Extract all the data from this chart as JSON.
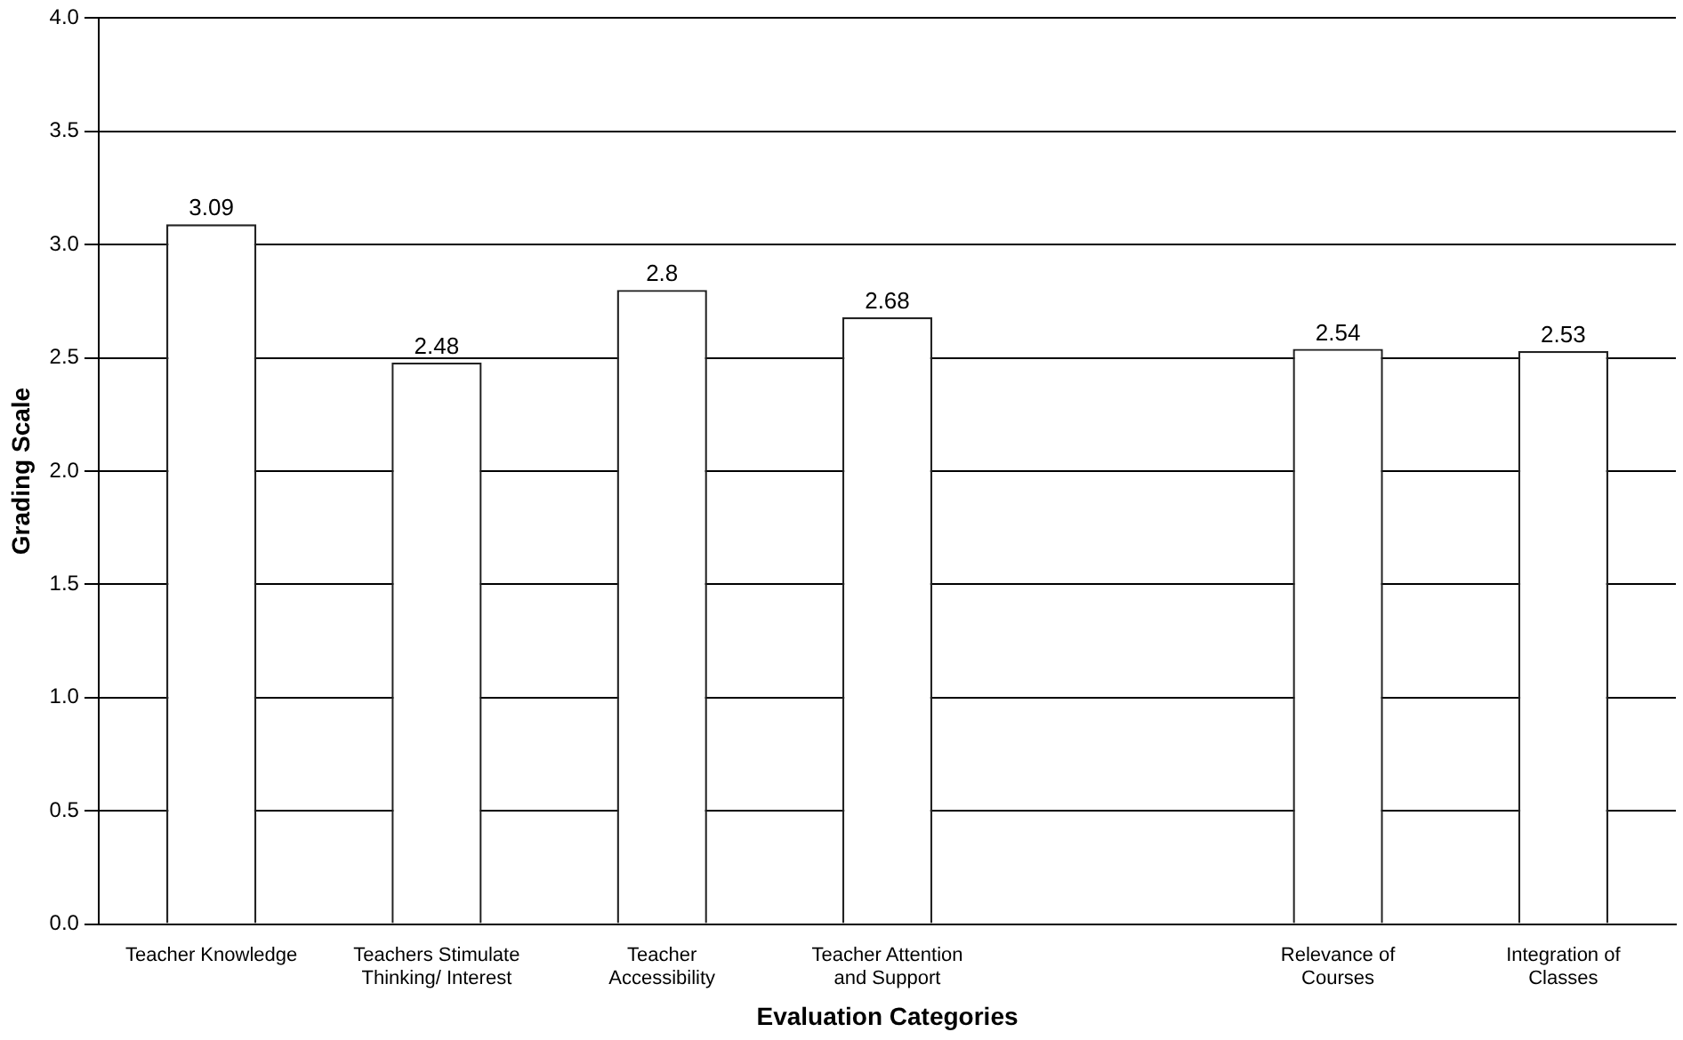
{
  "chart_data": {
    "type": "bar",
    "xlabel": "Evaluation Categories",
    "ylabel": "Grading Scale",
    "categories": [
      "Teacher Knowledge",
      "Teachers Stimulate Thinking/ Interest",
      "Teacher Accessibility",
      "Teacher Attention and Support",
      null,
      "Relevance of Courses",
      "Integration of Classes"
    ],
    "values": [
      3.09,
      2.48,
      2.8,
      2.68,
      null,
      2.54,
      2.53
    ],
    "color": "#ffffff",
    "ylim": [
      0,
      4
    ],
    "yticks": [
      {
        "value": 0,
        "label": "0.0"
      },
      0.5,
      {
        "value": 1,
        "label": "1.0"
      },
      1.5,
      {
        "value": 2,
        "label": "2.0"
      },
      2.5,
      {
        "value": 3,
        "label": "3.0"
      },
      3.5,
      {
        "value": 4,
        "label": "4.0"
      }
    ],
    "grid": "y",
    "data_labels": true,
    "legend": false
  }
}
